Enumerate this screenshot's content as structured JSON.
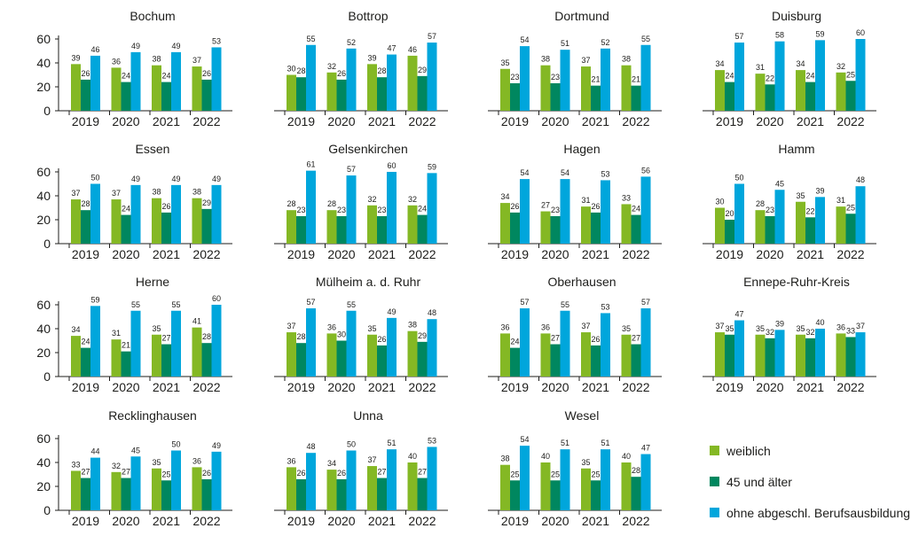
{
  "colors": {
    "weiblich": "#84b824",
    "alter45": "#00875f",
    "ohne": "#00a6dc",
    "axis": "#1d1d1b"
  },
  "legend": {
    "items": [
      {
        "label": "weiblich",
        "color": "#84b824"
      },
      {
        "label": "45 und älter",
        "color": "#00875f"
      },
      {
        "label": "ohne abgeschl. Berufsausbildung",
        "color": "#00a6dc"
      }
    ]
  },
  "chart_data": [
    {
      "type": "bar",
      "title": "Bochum",
      "categories": [
        "2019",
        "2020",
        "2021",
        "2022"
      ],
      "yticks": [
        0,
        20,
        40,
        60
      ],
      "ylim": [
        0,
        60
      ],
      "series": [
        {
          "name": "weiblich",
          "values": [
            39,
            36,
            38,
            37
          ]
        },
        {
          "name": "45 und älter",
          "values": [
            26,
            24,
            24,
            26
          ]
        },
        {
          "name": "ohne abgeschl. Berufsausbildung",
          "values": [
            46,
            49,
            49,
            53
          ]
        }
      ]
    },
    {
      "type": "bar",
      "title": "Bottrop",
      "categories": [
        "2019",
        "2020",
        "2021",
        "2022"
      ],
      "yticks": [],
      "ylim": [
        0,
        60
      ],
      "series": [
        {
          "name": "weiblich",
          "values": [
            30,
            32,
            39,
            46
          ]
        },
        {
          "name": "45 und älter",
          "values": [
            28,
            26,
            28,
            29
          ]
        },
        {
          "name": "ohne abgeschl. Berufsausbildung",
          "values": [
            55,
            52,
            47,
            57
          ]
        }
      ]
    },
    {
      "type": "bar",
      "title": "Dortmund",
      "categories": [
        "2019",
        "2020",
        "2021",
        "2022"
      ],
      "yticks": [],
      "ylim": [
        0,
        60
      ],
      "series": [
        {
          "name": "weiblich",
          "values": [
            35,
            38,
            37,
            38
          ]
        },
        {
          "name": "45 und älter",
          "values": [
            23,
            23,
            21,
            21
          ]
        },
        {
          "name": "ohne abgeschl. Berufsausbildung",
          "values": [
            54,
            51,
            52,
            55
          ]
        }
      ]
    },
    {
      "type": "bar",
      "title": "Duisburg",
      "categories": [
        "2019",
        "2020",
        "2021",
        "2022"
      ],
      "yticks": [],
      "ylim": [
        0,
        60
      ],
      "series": [
        {
          "name": "weiblich",
          "values": [
            34,
            31,
            34,
            32
          ]
        },
        {
          "name": "45 und älter",
          "values": [
            24,
            22,
            24,
            25
          ]
        },
        {
          "name": "ohne abgeschl. Berufsausbildung",
          "values": [
            57,
            58,
            59,
            60
          ]
        }
      ]
    },
    {
      "type": "bar",
      "title": "Essen",
      "categories": [
        "2019",
        "2020",
        "2021",
        "2022"
      ],
      "yticks": [
        0,
        20,
        40,
        60
      ],
      "ylim": [
        0,
        60
      ],
      "series": [
        {
          "name": "weiblich",
          "values": [
            37,
            37,
            38,
            38
          ]
        },
        {
          "name": "45 und älter",
          "values": [
            28,
            24,
            26,
            29
          ]
        },
        {
          "name": "ohne abgeschl. Berufsausbildung",
          "values": [
            50,
            49,
            49,
            49
          ]
        }
      ]
    },
    {
      "type": "bar",
      "title": "Gelsenkirchen",
      "categories": [
        "2019",
        "2020",
        "2021",
        "2022"
      ],
      "yticks": [],
      "ylim": [
        0,
        60
      ],
      "series": [
        {
          "name": "weiblich",
          "values": [
            28,
            28,
            32,
            32
          ]
        },
        {
          "name": "45 und älter",
          "values": [
            23,
            23,
            23,
            24
          ]
        },
        {
          "name": "ohne abgeschl. Berufsausbildung",
          "values": [
            61,
            57,
            60,
            59
          ]
        }
      ]
    },
    {
      "type": "bar",
      "title": "Hagen",
      "categories": [
        "2019",
        "2020",
        "2021",
        "2022"
      ],
      "yticks": [],
      "ylim": [
        0,
        60
      ],
      "series": [
        {
          "name": "weiblich",
          "values": [
            34,
            27,
            31,
            33
          ]
        },
        {
          "name": "45 und älter",
          "values": [
            26,
            23,
            26,
            24
          ]
        },
        {
          "name": "ohne abgeschl. Berufsausbildung",
          "values": [
            54,
            54,
            53,
            56
          ]
        }
      ]
    },
    {
      "type": "bar",
      "title": "Hamm",
      "categories": [
        "2019",
        "2020",
        "2021",
        "2022"
      ],
      "yticks": [],
      "ylim": [
        0,
        60
      ],
      "series": [
        {
          "name": "weiblich",
          "values": [
            30,
            28,
            35,
            31
          ]
        },
        {
          "name": "45 und älter",
          "values": [
            20,
            23,
            22,
            25
          ]
        },
        {
          "name": "ohne abgeschl. Berufsausbildung",
          "values": [
            50,
            45,
            39,
            48
          ]
        }
      ]
    },
    {
      "type": "bar",
      "title": "Herne",
      "categories": [
        "2019",
        "2020",
        "2021",
        "2022"
      ],
      "yticks": [
        0,
        20,
        40,
        60
      ],
      "ylim": [
        0,
        60
      ],
      "series": [
        {
          "name": "weiblich",
          "values": [
            34,
            31,
            35,
            41
          ]
        },
        {
          "name": "45 und älter",
          "values": [
            24,
            21,
            27,
            28
          ]
        },
        {
          "name": "ohne abgeschl. Berufsausbildung",
          "values": [
            59,
            55,
            55,
            60
          ]
        }
      ]
    },
    {
      "type": "bar",
      "title": "Mülheim a. d. Ruhr",
      "categories": [
        "2019",
        "2020",
        "2021",
        "2022"
      ],
      "yticks": [],
      "ylim": [
        0,
        60
      ],
      "series": [
        {
          "name": "weiblich",
          "values": [
            37,
            36,
            35,
            38
          ]
        },
        {
          "name": "45 und älter",
          "values": [
            28,
            30,
            26,
            29
          ]
        },
        {
          "name": "ohne abgeschl. Berufsausbildung",
          "values": [
            57,
            55,
            49,
            48
          ]
        }
      ]
    },
    {
      "type": "bar",
      "title": "Oberhausen",
      "categories": [
        "2019",
        "2020",
        "2021",
        "2022"
      ],
      "yticks": [],
      "ylim": [
        0,
        60
      ],
      "series": [
        {
          "name": "weiblich",
          "values": [
            36,
            36,
            37,
            35
          ]
        },
        {
          "name": "45 und älter",
          "values": [
            24,
            27,
            26,
            27
          ]
        },
        {
          "name": "ohne abgeschl. Berufsausbildung",
          "values": [
            57,
            55,
            53,
            57
          ]
        }
      ]
    },
    {
      "type": "bar",
      "title": "Ennepe-Ruhr-Kreis",
      "categories": [
        "2019",
        "2020",
        "2021",
        "2022"
      ],
      "yticks": [],
      "ylim": [
        0,
        60
      ],
      "series": [
        {
          "name": "weiblich",
          "values": [
            37,
            35,
            35,
            36
          ]
        },
        {
          "name": "45 und älter",
          "values": [
            35,
            32,
            32,
            33
          ]
        },
        {
          "name": "ohne abgeschl. Berufsausbildung",
          "values": [
            47,
            39,
            40,
            37
          ]
        }
      ]
    },
    {
      "type": "bar",
      "title": "Recklinghausen",
      "categories": [
        "2019",
        "2020",
        "2021",
        "2022"
      ],
      "yticks": [
        0,
        20,
        40,
        60
      ],
      "ylim": [
        0,
        60
      ],
      "series": [
        {
          "name": "weiblich",
          "values": [
            33,
            32,
            35,
            36
          ]
        },
        {
          "name": "45 und älter",
          "values": [
            27,
            27,
            25,
            26
          ]
        },
        {
          "name": "ohne abgeschl. Berufsausbildung",
          "values": [
            44,
            45,
            50,
            49
          ]
        }
      ]
    },
    {
      "type": "bar",
      "title": "Unna",
      "categories": [
        "2019",
        "2020",
        "2021",
        "2022"
      ],
      "yticks": [],
      "ylim": [
        0,
        60
      ],
      "series": [
        {
          "name": "weiblich",
          "values": [
            36,
            34,
            37,
            40
          ]
        },
        {
          "name": "45 und älter",
          "values": [
            26,
            26,
            27,
            27
          ]
        },
        {
          "name": "ohne abgeschl. Berufsausbildung",
          "values": [
            48,
            50,
            51,
            53
          ]
        }
      ]
    },
    {
      "type": "bar",
      "title": "Wesel",
      "categories": [
        "2019",
        "2020",
        "2021",
        "2022"
      ],
      "yticks": [],
      "ylim": [
        0,
        60
      ],
      "series": [
        {
          "name": "weiblich",
          "values": [
            38,
            40,
            35,
            40
          ]
        },
        {
          "name": "45 und älter",
          "values": [
            25,
            25,
            25,
            28
          ]
        },
        {
          "name": "ohne abgeschl. Berufsausbildung",
          "values": [
            54,
            51,
            51,
            47
          ]
        }
      ]
    }
  ]
}
